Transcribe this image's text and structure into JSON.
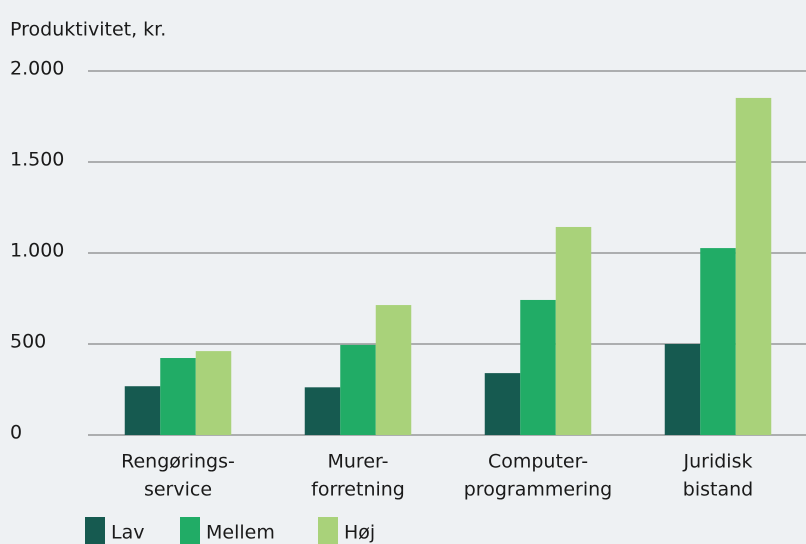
{
  "chart_data": {
    "type": "bar",
    "y_label": "Produktivitet, kr.",
    "categories": [
      [
        "Rengørings-",
        "service"
      ],
      [
        "Murer-",
        "forretning"
      ],
      [
        "Computer-",
        "programmering"
      ],
      [
        "Juridisk",
        "bistand"
      ]
    ],
    "series": [
      {
        "name": "Lav",
        "color": "#165a50",
        "values": [
          268,
          262,
          340,
          500
        ]
      },
      {
        "name": "Mellem",
        "color": "#21ac66",
        "values": [
          423,
          495,
          742,
          1027
        ]
      },
      {
        "name": "Høj",
        "color": "#a9d27a",
        "values": [
          461,
          714,
          1143,
          1852
        ]
      }
    ],
    "ylim": [
      0,
      2000
    ],
    "yticks": [
      0,
      500,
      {
        "value": 1000,
        "label": "1.000"
      },
      {
        "value": 1500,
        "label": "1.500"
      },
      {
        "value": 2000,
        "label": "2.000"
      }
    ],
    "grid": true
  }
}
